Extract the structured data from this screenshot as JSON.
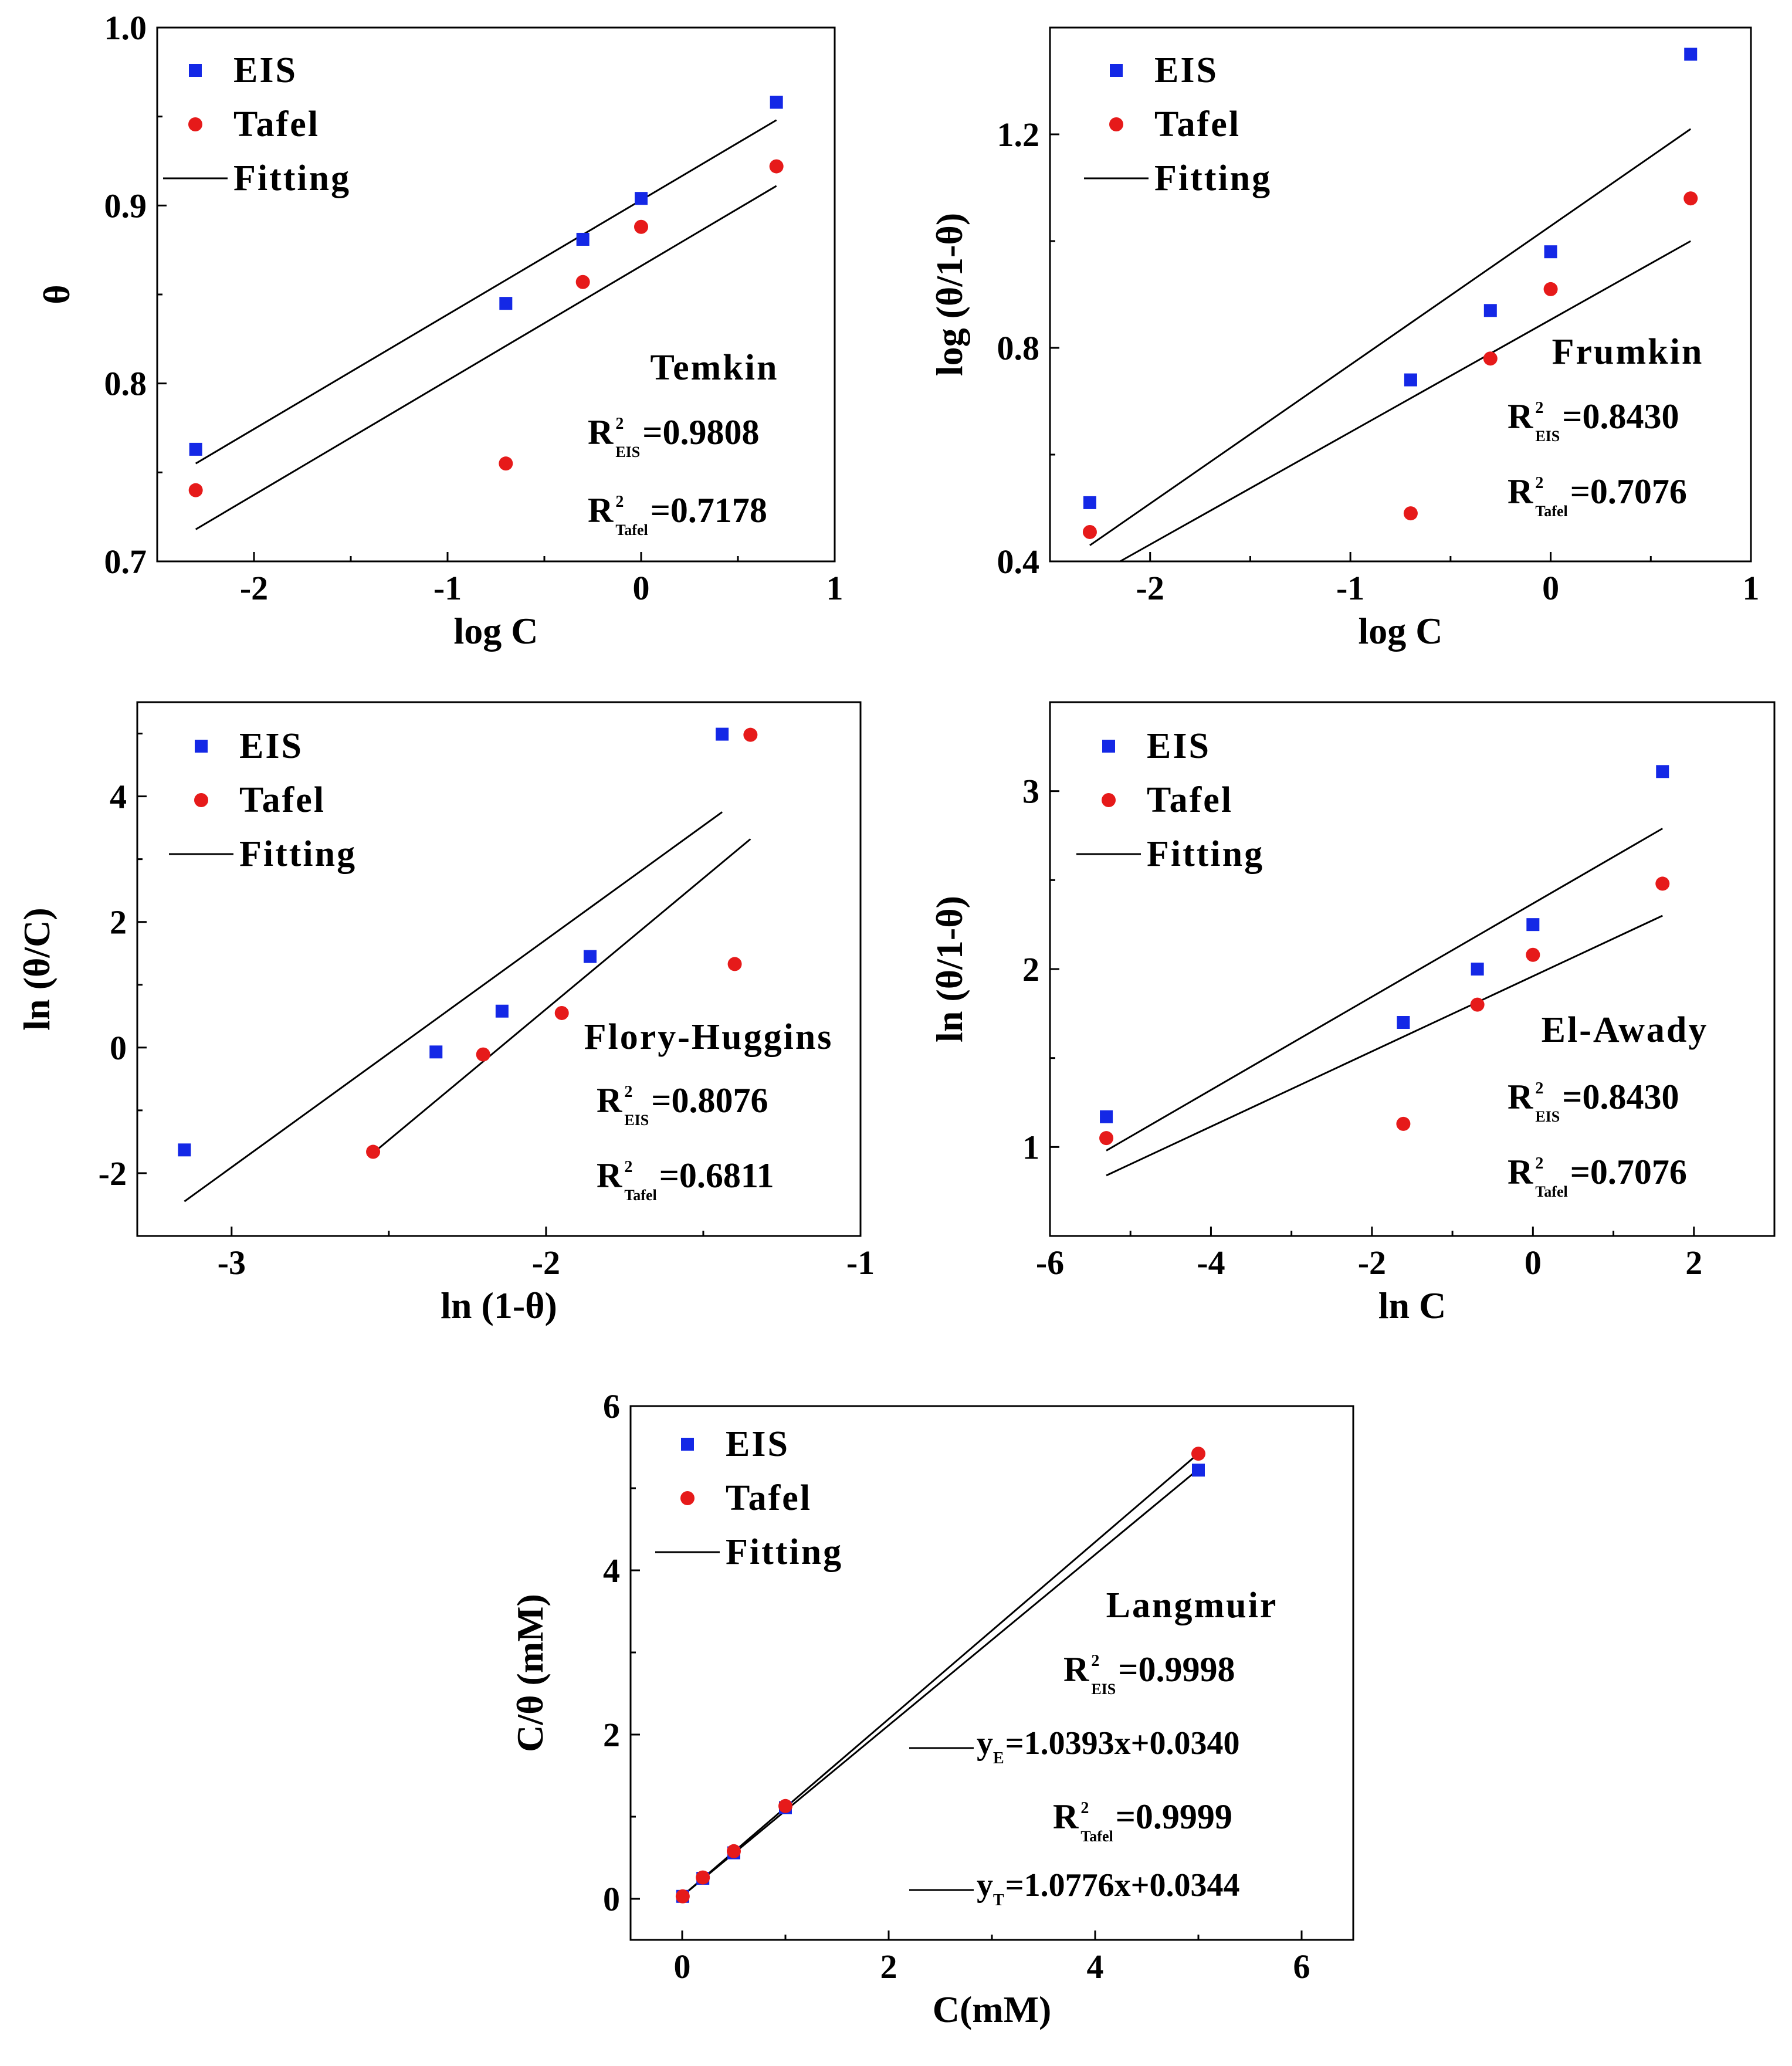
{
  "chart_data": [
    {
      "id": "temkin",
      "type": "scatter",
      "model": "Temkin",
      "xlabel": "log C",
      "ylabel": "θ",
      "xlim": [
        -2.5,
        1
      ],
      "ylim": [
        0.7,
        1.0
      ],
      "xticks": [
        {
          "v": -2,
          "label": "-2"
        },
        {
          "v": -1,
          "label": "-1"
        },
        {
          "v": 0,
          "label": "0"
        },
        {
          "v": 1,
          "label": "1"
        }
      ],
      "yticks": [
        {
          "v": 0.7,
          "label": "0.7"
        },
        {
          "v": 0.8,
          "label": "0.8"
        },
        {
          "v": 0.9,
          "label": "0.9"
        },
        {
          "v": 1.0,
          "label": "1.0"
        }
      ],
      "legend": {
        "eis": "EIS",
        "tafel": "Tafel",
        "fit": "Fitting"
      },
      "series": [
        {
          "name": "EIS",
          "color": "#1428e6",
          "marker": "square",
          "x": [
            -2.301,
            -0.699,
            -0.301,
            0.0,
            0.699
          ],
          "y": [
            0.763,
            0.845,
            0.881,
            0.904,
            0.958
          ]
        },
        {
          "name": "Tafel",
          "color": "#e61a1a",
          "marker": "circle",
          "x": [
            -2.301,
            -0.699,
            -0.301,
            0.0,
            0.699
          ],
          "y": [
            0.74,
            0.755,
            0.857,
            0.888,
            0.922
          ]
        }
      ],
      "fits": [
        {
          "name": "EIS fit",
          "x": [
            -2.301,
            0.699
          ],
          "y": [
            0.755,
            0.948
          ]
        },
        {
          "name": "Tafel fit",
          "x": [
            -2.301,
            0.699
          ],
          "y": [
            0.718,
            0.911
          ]
        }
      ],
      "r2": [
        {
          "base": "R",
          "sup": "2",
          "sub": "EIS",
          "value": "=0.9808"
        },
        {
          "base": "R",
          "sup": "2",
          "sub": "Tafel",
          "value": "=0.7178"
        }
      ],
      "equations": []
    },
    {
      "id": "frumkin",
      "type": "scatter",
      "model": "Frumkin",
      "xlabel": "log C",
      "ylabel": "log (θ/1-θ)",
      "xlim": [
        -2.5,
        1
      ],
      "ylim": [
        0.4,
        1.4
      ],
      "xticks": [
        {
          "v": -2,
          "label": "-2"
        },
        {
          "v": -1,
          "label": "-1"
        },
        {
          "v": 0,
          "label": "0"
        },
        {
          "v": 1,
          "label": "1"
        }
      ],
      "yticks": [
        {
          "v": 0.4,
          "label": "0.4"
        },
        {
          "v": 0.8,
          "label": "0.8"
        },
        {
          "v": 1.2,
          "label": "1.2"
        }
      ],
      "legend": {
        "eis": "EIS",
        "tafel": "Tafel",
        "fit": "Fitting"
      },
      "series": [
        {
          "name": "EIS",
          "color": "#1428e6",
          "marker": "square",
          "x": [
            -2.301,
            -0.699,
            -0.301,
            0.0,
            0.699
          ],
          "y": [
            0.51,
            0.74,
            0.87,
            0.98,
            1.35
          ]
        },
        {
          "name": "Tafel",
          "color": "#e61a1a",
          "marker": "circle",
          "x": [
            -2.301,
            -0.699,
            -0.301,
            0.0,
            0.699
          ],
          "y": [
            0.455,
            0.49,
            0.78,
            0.91,
            1.08
          ]
        }
      ],
      "fits": [
        {
          "name": "EIS fit",
          "x": [
            -2.301,
            0.699
          ],
          "y": [
            0.43,
            1.21
          ]
        },
        {
          "name": "Tafel fit",
          "x": [
            -2.15,
            0.699
          ],
          "y": [
            0.4,
            1.0
          ]
        }
      ],
      "r2": [
        {
          "base": "R",
          "sup": "2",
          "sub": "EIS",
          "value": "=0.8430"
        },
        {
          "base": "R",
          "sup": "2",
          "sub": "Tafel",
          "value": "=0.7076"
        }
      ],
      "equations": []
    },
    {
      "id": "flory",
      "type": "scatter",
      "model": "Flory-Huggins",
      "xlabel": "ln (1-θ)",
      "ylabel": "ln (θ/C)",
      "xlim": [
        -3.3,
        -1
      ],
      "ylim": [
        -3,
        5.5
      ],
      "xticks": [
        {
          "v": -3,
          "label": "-3"
        },
        {
          "v": -2,
          "label": "-2"
        },
        {
          "v": -1,
          "label": "-1"
        }
      ],
      "yticks": [
        {
          "v": -2,
          "label": "-2"
        },
        {
          "v": 0,
          "label": "0"
        },
        {
          "v": 2,
          "label": "2"
        },
        {
          "v": 4,
          "label": "4"
        }
      ],
      "legend": {
        "eis": "EIS",
        "tafel": "Tafel",
        "fit": "Fitting"
      },
      "series": [
        {
          "name": "EIS",
          "color": "#1428e6",
          "marker": "square",
          "x": [
            -3.15,
            -2.35,
            -2.14,
            -1.86,
            -1.44
          ],
          "y": [
            -1.63,
            -0.07,
            0.58,
            1.45,
            4.99
          ]
        },
        {
          "name": "Tafel",
          "color": "#e61a1a",
          "marker": "circle",
          "x": [
            -2.55,
            -2.2,
            -1.95,
            -1.4,
            -1.35
          ],
          "y": [
            -1.66,
            -0.11,
            0.55,
            1.33,
            4.98
          ]
        }
      ],
      "fits": [
        {
          "name": "EIS fit",
          "x": [
            -3.15,
            -1.44
          ],
          "y": [
            -2.45,
            3.75
          ]
        },
        {
          "name": "Tafel fit",
          "x": [
            -2.55,
            -1.35
          ],
          "y": [
            -1.68,
            3.32
          ]
        }
      ],
      "r2": [
        {
          "base": "R",
          "sup": "2",
          "sub": "EIS",
          "value": "=0.8076"
        },
        {
          "base": "R",
          "sup": "2",
          "sub": "Tafel",
          "value": "=0.6811"
        }
      ],
      "equations": []
    },
    {
      "id": "elawady",
      "type": "scatter",
      "model": "El-Awady",
      "xlabel": "ln C",
      "ylabel": "ln (θ/1-θ)",
      "xlim": [
        -6,
        3
      ],
      "ylim": [
        0.5,
        3.5
      ],
      "xticks": [
        {
          "v": -6,
          "label": "-6"
        },
        {
          "v": -4,
          "label": "-4"
        },
        {
          "v": -2,
          "label": "-2"
        },
        {
          "v": 0,
          "label": "0"
        },
        {
          "v": 2,
          "label": "2"
        }
      ],
      "yticks": [
        {
          "v": 1,
          "label": "1"
        },
        {
          "v": 2,
          "label": "2"
        },
        {
          "v": 3,
          "label": "3"
        }
      ],
      "legend": {
        "eis": "EIS",
        "tafel": "Tafel",
        "fit": "Fitting"
      },
      "series": [
        {
          "name": "EIS",
          "color": "#1428e6",
          "marker": "square",
          "x": [
            -5.3,
            -1.61,
            -0.69,
            0.0,
            1.61
          ],
          "y": [
            1.17,
            1.7,
            2.0,
            2.25,
            3.11
          ]
        },
        {
          "name": "Tafel",
          "color": "#e61a1a",
          "marker": "circle",
          "x": [
            -5.3,
            -1.61,
            -0.69,
            0.0,
            1.61
          ],
          "y": [
            1.05,
            1.13,
            1.8,
            2.08,
            2.48
          ]
        }
      ],
      "fits": [
        {
          "name": "EIS fit",
          "x": [
            -5.3,
            1.61
          ],
          "y": [
            0.98,
            2.79
          ]
        },
        {
          "name": "Tafel fit",
          "x": [
            -5.3,
            1.61
          ],
          "y": [
            0.84,
            2.3
          ]
        }
      ],
      "r2": [
        {
          "base": "R",
          "sup": "2",
          "sub": "EIS",
          "value": "=0.8430"
        },
        {
          "base": "R",
          "sup": "2",
          "sub": "Tafel",
          "value": "=0.7076"
        }
      ],
      "equations": []
    },
    {
      "id": "langmuir",
      "type": "scatter",
      "model": "Langmuir",
      "xlabel": "C(mM)",
      "ylabel": "C/θ (mM)",
      "xlim": [
        -0.5,
        6.5
      ],
      "ylim": [
        -0.5,
        6
      ],
      "xticks": [
        {
          "v": 0,
          "label": "0"
        },
        {
          "v": 2,
          "label": "2"
        },
        {
          "v": 4,
          "label": "4"
        },
        {
          "v": 6,
          "label": "6"
        }
      ],
      "yticks": [
        {
          "v": 0,
          "label": "0"
        },
        {
          "v": 2,
          "label": "2"
        },
        {
          "v": 4,
          "label": "4"
        },
        {
          "v": 6,
          "label": "6"
        }
      ],
      "legend": {
        "eis": "EIS",
        "tafel": "Tafel",
        "fit": "Fitting"
      },
      "series": [
        {
          "name": "EIS",
          "color": "#1428e6",
          "marker": "square",
          "x": [
            0.005,
            0.2,
            0.5,
            1.0,
            5.0
          ],
          "y": [
            0.03,
            0.25,
            0.56,
            1.11,
            5.22
          ]
        },
        {
          "name": "Tafel",
          "color": "#e61a1a",
          "marker": "circle",
          "x": [
            0.005,
            0.2,
            0.5,
            1.0,
            5.0
          ],
          "y": [
            0.03,
            0.26,
            0.58,
            1.13,
            5.42
          ]
        }
      ],
      "fits": [
        {
          "name": "EIS fit",
          "x": [
            0.0,
            5.0
          ],
          "y": [
            0.034,
            5.231
          ]
        },
        {
          "name": "Tafel fit",
          "x": [
            0.0,
            5.0
          ],
          "y": [
            0.034,
            5.422
          ]
        }
      ],
      "r2": [
        {
          "base": "R",
          "sup": "2",
          "sub": "EIS",
          "value": "=0.9998"
        },
        {
          "base": "R",
          "sup": "2",
          "sub": "Tafel",
          "value": "=0.9999"
        }
      ],
      "equations": [
        {
          "base": "y",
          "sub": "E",
          "value": "=1.0393x+0.0340"
        },
        {
          "base": "y",
          "sub": "T",
          "value": "=1.0776x+0.0344"
        }
      ]
    }
  ]
}
